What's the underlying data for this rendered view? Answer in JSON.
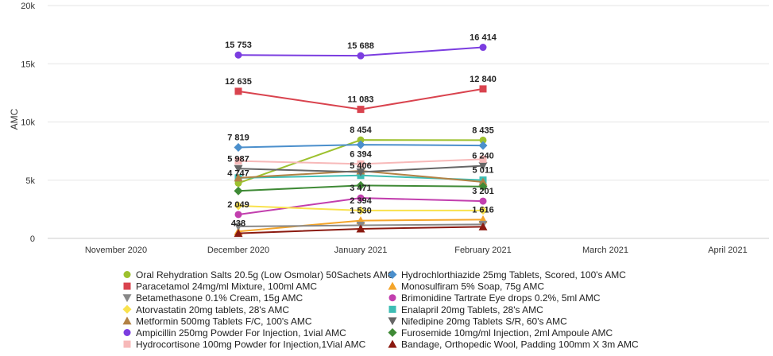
{
  "chart_data": {
    "type": "line",
    "ylabel": "AMC",
    "y_ticks": [
      {
        "value": 0,
        "label": "0"
      },
      {
        "value": 5000,
        "label": "5k"
      },
      {
        "value": 10000,
        "label": "10k"
      },
      {
        "value": 15000,
        "label": "15k"
      },
      {
        "value": 20000,
        "label": "20k"
      }
    ],
    "ylim": [
      0,
      20000
    ],
    "x_categories": [
      "November 2020",
      "December 2020",
      "January 2021",
      "February 2021",
      "March 2021",
      "April 2021"
    ],
    "series": [
      {
        "name": "Oral Rehydration Salts 20.5g (Low Osmolar) 50Sachets AMC",
        "color": "#9dc12e",
        "marker": "circle",
        "values": [
          null,
          4747,
          8454,
          8435,
          null,
          null
        ],
        "labels": [
          null,
          "4 747",
          "8 454",
          "8 435",
          null,
          null
        ]
      },
      {
        "name": "Hydrochlorthiazide 25mg Tablets, Scored, 100's AMC",
        "color": "#4b8fcc",
        "marker": "diamond",
        "values": [
          null,
          7819,
          8050,
          7980,
          null,
          null
        ],
        "labels": [
          null,
          "7 819",
          null,
          null,
          null,
          null
        ]
      },
      {
        "name": "Paracetamol 24mg/ml Mixture, 100ml AMC",
        "color": "#d9434e",
        "marker": "square",
        "values": [
          null,
          12635,
          11083,
          12840,
          null,
          null
        ],
        "labels": [
          null,
          "12 635",
          "11 083",
          "12 840",
          null,
          null
        ]
      },
      {
        "name": "Monosulfiram 5% Soap, 75g AMC",
        "color": "#f4a52b",
        "marker": "triangle",
        "values": [
          null,
          600,
          1530,
          1616,
          null,
          null
        ],
        "labels": [
          null,
          null,
          "1 530",
          "1 616",
          null,
          null
        ]
      },
      {
        "name": "Betamethasone 0.1% Cream, 15g AMC",
        "color": "#888888",
        "marker": "triangle-down",
        "values": [
          null,
          1020,
          1130,
          1200,
          null,
          null
        ],
        "labels": [
          null,
          null,
          null,
          null,
          null,
          null
        ]
      },
      {
        "name": "Brimonidine Tartrate Eye drops 0.2%, 5ml AMC",
        "color": "#c23fae",
        "marker": "circle",
        "values": [
          null,
          2049,
          3471,
          3201,
          null,
          null
        ],
        "labels": [
          null,
          "2 049",
          "3 471",
          "3 201",
          null,
          null
        ]
      },
      {
        "name": "Atorvastatin 20mg tablets, 28's AMC",
        "color": "#f9e24d",
        "marker": "diamond",
        "values": [
          null,
          2800,
          2394,
          2400,
          null,
          null
        ],
        "labels": [
          null,
          null,
          "2 394",
          null,
          null,
          null
        ]
      },
      {
        "name": "Enalapril 20mg Tablets, 28's AMC",
        "color": "#3dbdb4",
        "marker": "square",
        "values": [
          null,
          5200,
          5406,
          5011,
          null,
          null
        ],
        "labels": [
          null,
          null,
          "5 406",
          "5 011",
          null,
          null
        ]
      },
      {
        "name": "Metformin 500mg Tablets F/C, 100's AMC",
        "color": "#b28144",
        "marker": "triangle",
        "values": [
          null,
          5200,
          5800,
          4850,
          null,
          null
        ],
        "labels": [
          null,
          null,
          null,
          null,
          null,
          null
        ]
      },
      {
        "name": "Nifedipine 20mg Tablets S/R, 60's AMC",
        "color": "#666666",
        "marker": "triangle-down",
        "values": [
          null,
          5987,
          5700,
          6240,
          null,
          null
        ],
        "labels": [
          null,
          "5 987",
          null,
          "6 240",
          null,
          null
        ]
      },
      {
        "name": "Ampicillin 250mg Powder For Injection, 1vial AMC",
        "color": "#7b3de0",
        "marker": "circle",
        "values": [
          null,
          15753,
          15688,
          16414,
          null,
          null
        ],
        "labels": [
          null,
          "15 753",
          "15 688",
          "16 414",
          null,
          null
        ]
      },
      {
        "name": "Furosemide 10mg/ml Injection, 2ml Ampoule AMC",
        "color": "#3f8a36",
        "marker": "diamond",
        "values": [
          null,
          4080,
          4550,
          4450,
          null,
          null
        ],
        "labels": [
          null,
          null,
          null,
          null,
          null,
          null
        ]
      },
      {
        "name": "Hydrocortisone 100mg Powder for Injection,1Vial AMC",
        "color": "#f7b9b9",
        "marker": "square",
        "values": [
          null,
          6650,
          6394,
          6800,
          null,
          null
        ],
        "labels": [
          null,
          null,
          "6 394",
          null,
          null,
          null
        ]
      },
      {
        "name": "Bandage, Orthopedic Wool, Padding 100mm X 3m AMC",
        "color": "#8b1a10",
        "marker": "triangle",
        "values": [
          null,
          438,
          820,
          1000,
          null,
          null
        ],
        "labels": [
          null,
          "438",
          null,
          null,
          null,
          null
        ]
      }
    ]
  }
}
